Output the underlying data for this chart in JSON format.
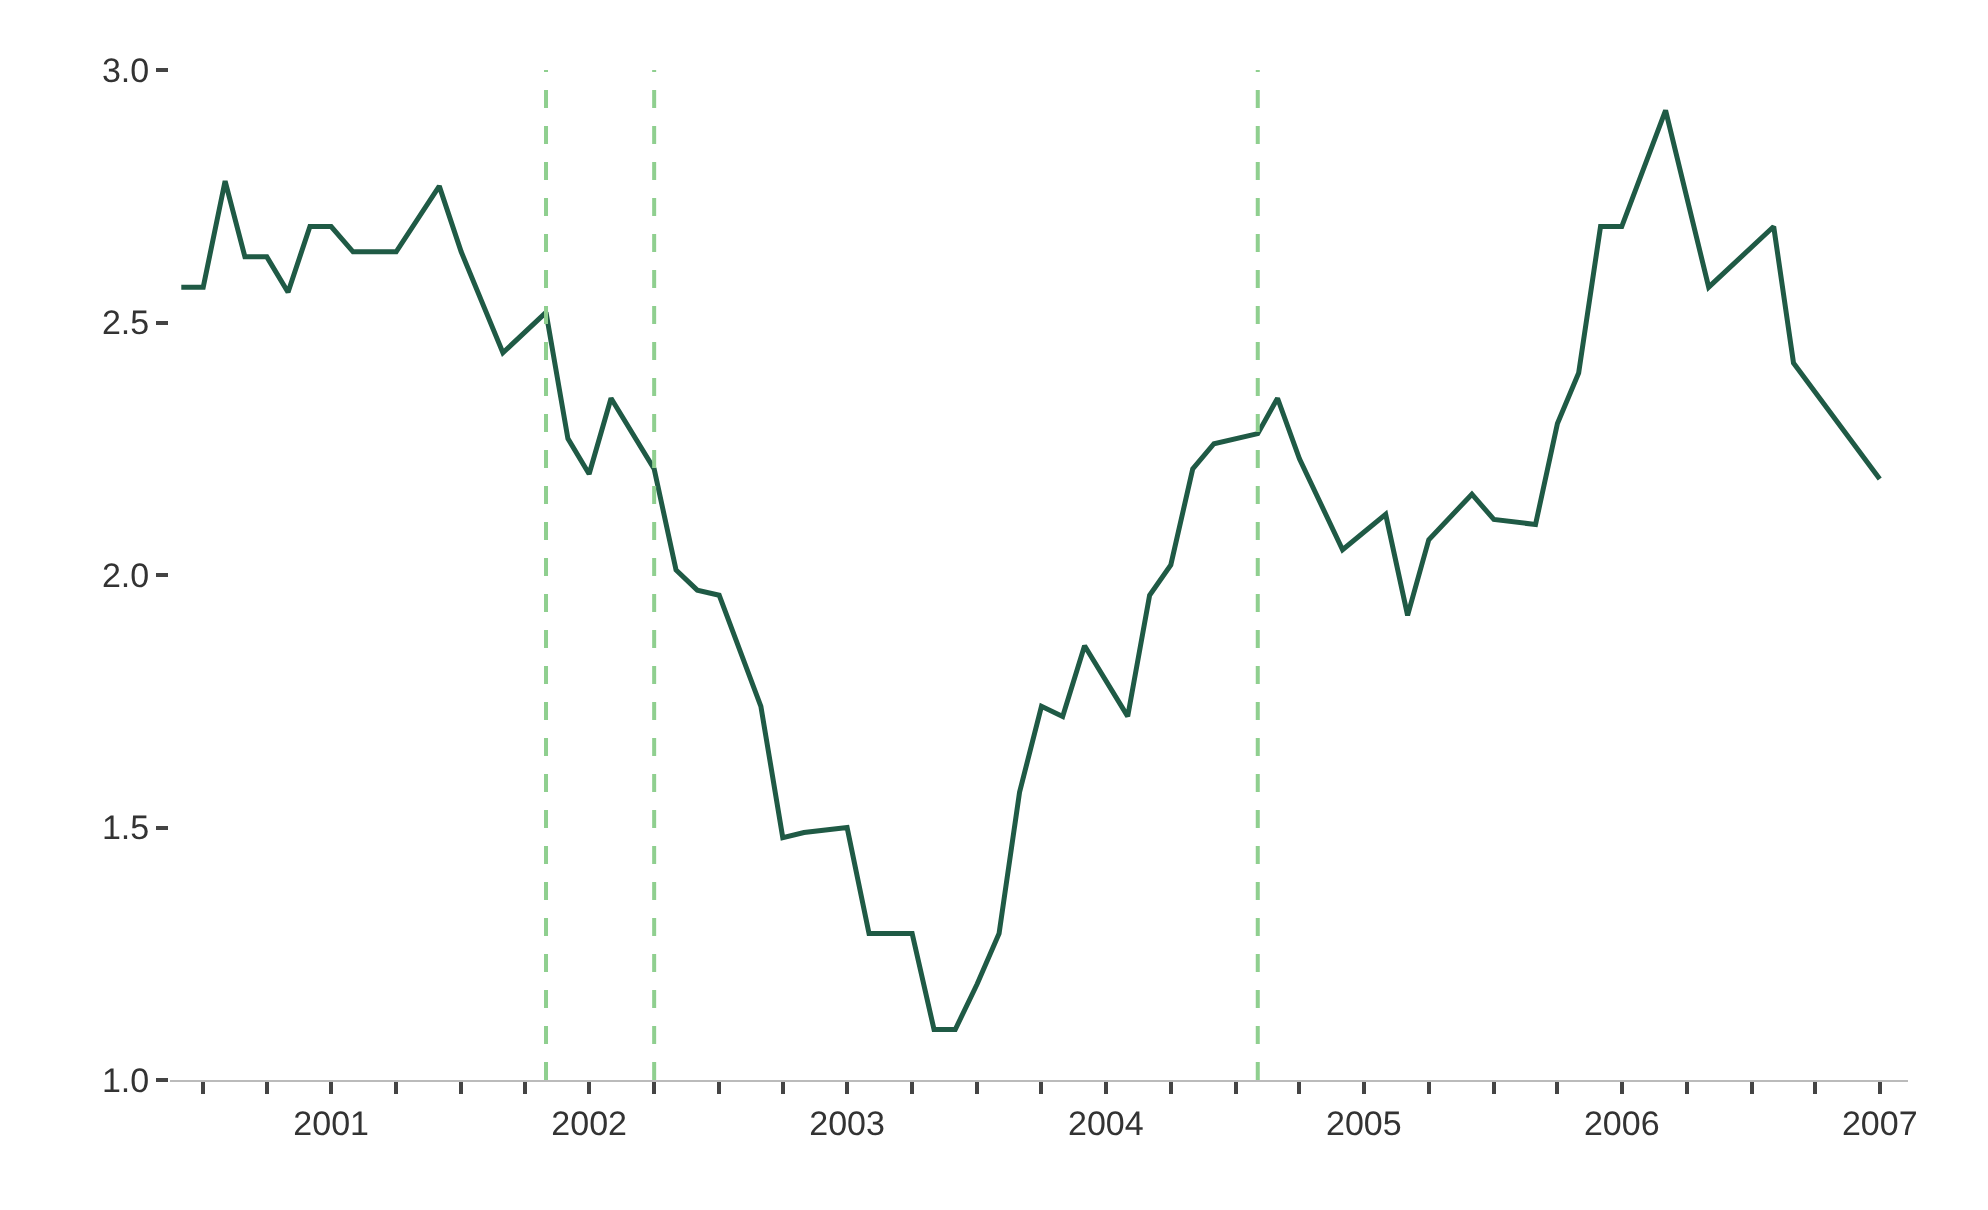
{
  "chart_data": {
    "type": "line",
    "x": [
      "2000-12",
      "2001-01",
      "2001-02",
      "2001-03",
      "2001-04",
      "2001-05",
      "2001-06",
      "2001-07",
      "2001-08",
      "2001-10",
      "2001-12",
      "2002-01",
      "2002-03",
      "2002-05",
      "2002-06",
      "2002-07",
      "2002-08",
      "2002-10",
      "2002-11",
      "2002-12",
      "2003-01",
      "2003-03",
      "2003-04",
      "2003-05",
      "2003-07",
      "2003-08",
      "2003-10",
      "2003-11",
      "2003-12",
      "2004-01",
      "2004-02",
      "2004-03",
      "2004-04",
      "2004-05",
      "2004-06",
      "2004-08",
      "2004-09",
      "2004-10",
      "2004-11",
      "2004-12",
      "2005-02",
      "2005-03",
      "2005-04",
      "2005-06",
      "2005-08",
      "2005-09",
      "2005-10",
      "2005-12",
      "2006-01",
      "2006-03",
      "2006-04",
      "2006-05",
      "2006-06",
      "2006-07",
      "2006-09",
      "2006-11",
      "2007-02",
      "2007-03",
      "2007-07"
    ],
    "series": [
      {
        "color": "#1f5a45",
        "values": [
          2.57,
          2.57,
          2.78,
          2.63,
          2.63,
          2.56,
          2.69,
          2.69,
          2.64,
          2.64,
          2.77,
          2.64,
          2.44,
          2.52,
          2.27,
          2.2,
          2.35,
          2.21,
          2.01,
          1.97,
          1.96,
          1.74,
          1.48,
          1.49,
          1.5,
          1.29,
          1.29,
          1.1,
          1.1,
          1.19,
          1.29,
          1.57,
          1.74,
          1.72,
          1.86,
          1.72,
          1.96,
          2.02,
          2.21,
          2.26,
          2.28,
          2.35,
          2.23,
          2.05,
          2.12,
          1.92,
          2.07,
          2.16,
          2.11,
          2.1,
          2.3,
          2.4,
          2.69,
          2.69,
          2.92,
          2.57,
          2.69,
          2.42,
          2.19
        ]
      }
    ],
    "xlim": [
      "2000-11-15",
      "2007-08-10"
    ],
    "xticks": [
      {
        "value": "2001-01-01",
        "label": null
      },
      {
        "value": "2001-04-01",
        "label": null
      },
      {
        "value": "2001-07-01",
        "label": "2001"
      },
      {
        "value": "2001-10-01",
        "label": null
      },
      {
        "value": "2002-01-01",
        "label": null
      },
      {
        "value": "2002-04-01",
        "label": null
      },
      {
        "value": "2002-07-01",
        "label": "2002"
      },
      {
        "value": "2002-10-01",
        "label": null
      },
      {
        "value": "2003-01-01",
        "label": null
      },
      {
        "value": "2003-04-01",
        "label": null
      },
      {
        "value": "2003-07-01",
        "label": "2003"
      },
      {
        "value": "2003-10-01",
        "label": null
      },
      {
        "value": "2004-01-01",
        "label": null
      },
      {
        "value": "2004-04-01",
        "label": null
      },
      {
        "value": "2004-07-01",
        "label": "2004"
      },
      {
        "value": "2004-10-01",
        "label": null
      },
      {
        "value": "2005-01-01",
        "label": null
      },
      {
        "value": "2005-04-01",
        "label": null
      },
      {
        "value": "2005-07-01",
        "label": "2005"
      },
      {
        "value": "2005-10-01",
        "label": null
      },
      {
        "value": "2006-01-01",
        "label": null
      },
      {
        "value": "2006-04-01",
        "label": null
      },
      {
        "value": "2006-07-01",
        "label": "2006"
      },
      {
        "value": "2006-10-01",
        "label": null
      },
      {
        "value": "2007-01-01",
        "label": null
      },
      {
        "value": "2007-04-01",
        "label": null
      },
      {
        "value": "2007-07-01",
        "label": "2007"
      }
    ],
    "ylim": [
      1.0,
      3.0
    ],
    "yticks": [
      {
        "value": 1.0,
        "label": "1.0"
      },
      {
        "value": 1.5,
        "label": "1.5"
      },
      {
        "value": 2.0,
        "label": "2.0"
      },
      {
        "value": 2.5,
        "label": "2.5"
      },
      {
        "value": 3.0,
        "label": "3.0"
      }
    ],
    "ref_lines": [
      {
        "axis": "x",
        "value": "2002-05",
        "color": "#8fcf8f",
        "line_style": "dashed"
      },
      {
        "axis": "x",
        "value": "2002-10",
        "color": "#8fcf8f",
        "line_style": "dashed"
      },
      {
        "axis": "x",
        "value": "2005-02",
        "color": "#8fcf8f",
        "line_style": "dashed"
      }
    ],
    "marker": "none",
    "line_style": "solid"
  }
}
